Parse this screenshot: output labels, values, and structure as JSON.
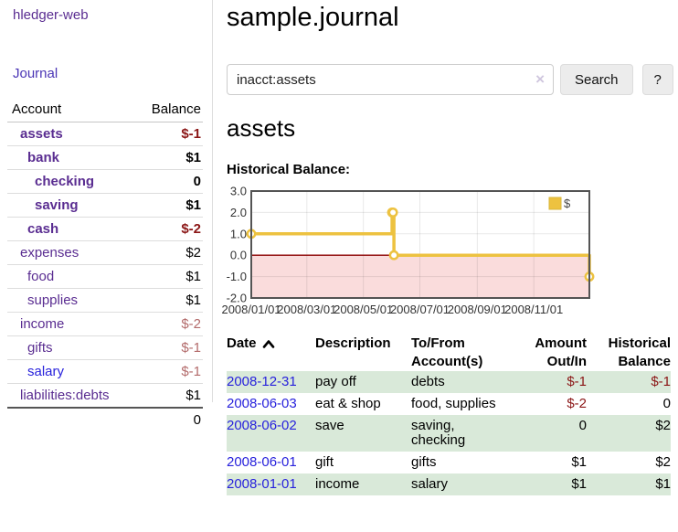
{
  "sidebar": {
    "brand": "hledger-web",
    "nav": {
      "journal": "Journal"
    },
    "accounts_table": {
      "headers": {
        "account": "Account",
        "balance": "Balance"
      },
      "rows": [
        {
          "name": "assets",
          "depth": 1,
          "bold": true,
          "balance": "$-1",
          "balance_style": "neg-strong"
        },
        {
          "name": "bank",
          "depth": 2,
          "bold": true,
          "balance": "$1",
          "balance_style": "pos-strong"
        },
        {
          "name": "checking",
          "depth": 3,
          "bold": true,
          "balance": "0",
          "balance_style": "pos-strong"
        },
        {
          "name": "saving",
          "depth": 3,
          "bold": true,
          "balance": "$1",
          "balance_style": "pos-strong"
        },
        {
          "name": "cash",
          "depth": 2,
          "bold": true,
          "balance": "$-2",
          "balance_style": "neg-strong"
        },
        {
          "name": "expenses",
          "depth": 1,
          "bold": false,
          "balance": "$2",
          "balance_style": "pos"
        },
        {
          "name": "food",
          "depth": 2,
          "bold": false,
          "balance": "$1",
          "balance_style": "pos"
        },
        {
          "name": "supplies",
          "depth": 2,
          "bold": false,
          "balance": "$1",
          "balance_style": "pos"
        },
        {
          "name": "income",
          "depth": 1,
          "bold": false,
          "balance": "$-2",
          "balance_style": "neg"
        },
        {
          "name": "gifts",
          "depth": 2,
          "bold": false,
          "balance": "$-1",
          "balance_style": "neg"
        },
        {
          "name": "salary",
          "depth": 2,
          "bold": false,
          "link_style": "unvisited",
          "balance": "$-1",
          "balance_style": "neg"
        },
        {
          "name": "liabilities:debts",
          "depth": 1,
          "bold": false,
          "balance": "$1",
          "balance_style": "pos"
        }
      ],
      "total": "0"
    }
  },
  "header": {
    "title": "sample.journal"
  },
  "search": {
    "value": "inacct:assets",
    "clear_icon": "×",
    "button_label": "Search",
    "help_label": "?"
  },
  "account_page": {
    "title": "assets",
    "chart_label": "Historical Balance:"
  },
  "chart_data": {
    "type": "line",
    "steps": true,
    "title": "Historical Balance",
    "xlim": [
      "2008-01-01",
      "2008-12-31"
    ],
    "ylim": [
      -2,
      3
    ],
    "x_ticks": [
      {
        "date": "2008-01-01",
        "label": "2008/01/01"
      },
      {
        "date": "2008-03-01",
        "label": "2008/03/01"
      },
      {
        "date": "2008-05-01",
        "label": "2008/05/01"
      },
      {
        "date": "2008-07-01",
        "label": "2008/07/01"
      },
      {
        "date": "2008-09-01",
        "label": "2008/09/01"
      },
      {
        "date": "2008-11-01",
        "label": "2008/11/01"
      }
    ],
    "y_ticks": [
      {
        "v": 3,
        "label": "3.0"
      },
      {
        "v": 2,
        "label": "2.0"
      },
      {
        "v": 1,
        "label": "1.0"
      },
      {
        "v": 0,
        "label": "0.0"
      },
      {
        "v": -1,
        "label": "-1.0"
      },
      {
        "v": -2,
        "label": "-2.0"
      }
    ],
    "series": [
      {
        "name": "$",
        "color": "#edc240",
        "points": [
          [
            "2008-01-01",
            1
          ],
          [
            "2008-06-01",
            2
          ],
          [
            "2008-06-02",
            2
          ],
          [
            "2008-06-03",
            0
          ],
          [
            "2008-12-31",
            -1
          ]
        ]
      }
    ],
    "legend": {
      "position": "ne",
      "label": "$"
    },
    "colors": {
      "negative_region": "#fadcdc",
      "zero_line": "#8b0000",
      "border": "#545454",
      "grid": "rgba(0,0,0,0.09)",
      "tick_text": "#333333"
    }
  },
  "register": {
    "headers": [
      {
        "l1": "Date",
        "l2": "",
        "sorted": "asc",
        "align": "left"
      },
      {
        "l1": "Description",
        "l2": "",
        "align": "left"
      },
      {
        "l1": "To/From",
        "l2": "Account(s)",
        "align": "left"
      },
      {
        "l1": "Amount",
        "l2": "Out/In",
        "align": "right"
      },
      {
        "l1": "Historical",
        "l2": "Balance",
        "align": "right"
      }
    ],
    "rows": [
      {
        "date": "2008-12-31",
        "description": "pay off",
        "accounts": [
          "debts"
        ],
        "amount": "$-1",
        "amount_neg": true,
        "balance": "$-1",
        "balance_neg": true,
        "striped": true
      },
      {
        "date": "2008-06-03",
        "description": "eat & shop",
        "accounts": [
          "food",
          "supplies"
        ],
        "amount": "$-2",
        "amount_neg": true,
        "balance": "0",
        "balance_neg": false,
        "striped": false
      },
      {
        "date": "2008-06-02",
        "description": "save",
        "accounts": [
          "saving",
          "checking"
        ],
        "amount": "0",
        "amount_neg": false,
        "balance": "$2",
        "balance_neg": false,
        "striped": true
      },
      {
        "date": "2008-06-01",
        "description": "gift",
        "accounts": [
          "gifts"
        ],
        "amount": "$1",
        "amount_neg": false,
        "balance": "$2",
        "balance_neg": false,
        "striped": false
      },
      {
        "date": "2008-01-01",
        "description": "income",
        "accounts": [
          "salary"
        ],
        "amount": "$1",
        "amount_neg": false,
        "balance": "$1",
        "balance_neg": false,
        "striped": true
      }
    ]
  }
}
